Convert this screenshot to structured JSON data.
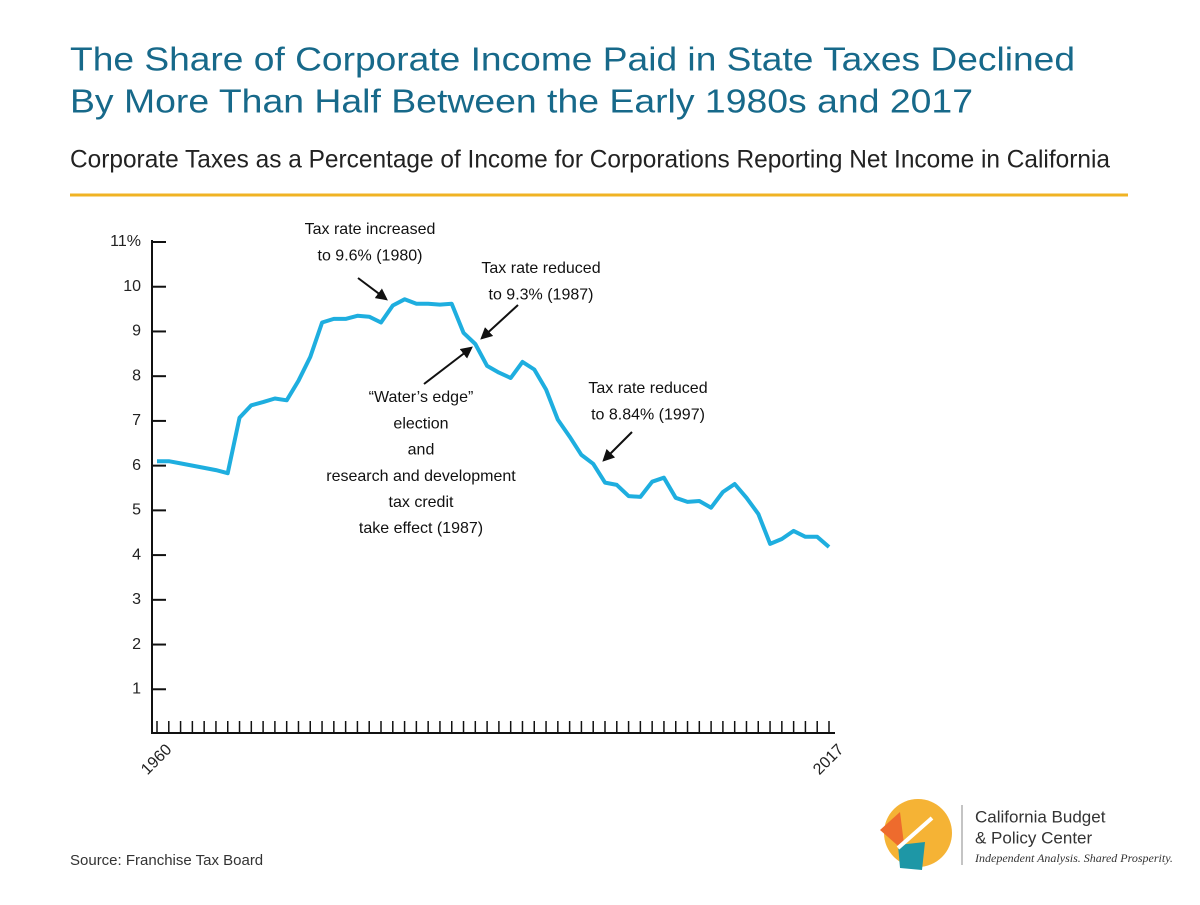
{
  "chart_data": {
    "type": "line",
    "title": [
      "The Share of Corporate Income Paid in State Taxes Declined",
      "By More Than Half Between the Early 1980s and 2017"
    ],
    "subtitle": "Corporate Taxes as a Percentage of Income for Corporations Reporting Net Income in California",
    "x": [
      1960,
      1961,
      1962,
      1963,
      1964,
      1965,
      1966,
      1967,
      1968,
      1969,
      1970,
      1971,
      1972,
      1973,
      1974,
      1975,
      1976,
      1977,
      1978,
      1979,
      1980,
      1981,
      1982,
      1983,
      1984,
      1985,
      1986,
      1987,
      1988,
      1989,
      1990,
      1991,
      1992,
      1993,
      1994,
      1995,
      1996,
      1997,
      1998,
      1999,
      2000,
      2001,
      2002,
      2003,
      2004,
      2005,
      2006,
      2007,
      2008,
      2009,
      2010,
      2011,
      2012,
      2013,
      2014,
      2015,
      2016,
      2017
    ],
    "series": [
      {
        "color": "#1eaedf",
        "values": [
          6.1,
          6.1,
          6.05,
          6.0,
          5.95,
          5.9,
          5.83,
          7.07,
          7.35,
          7.42,
          7.5,
          7.46,
          7.9,
          8.43,
          9.2,
          9.28,
          9.28,
          9.35,
          9.33,
          9.2,
          9.58,
          9.72,
          9.62,
          9.62,
          9.6,
          9.62,
          8.97,
          8.72,
          8.23,
          8.08,
          7.96,
          8.32,
          8.15,
          7.7,
          7.03,
          6.65,
          6.24,
          6.04,
          5.62,
          5.57,
          5.32,
          5.3,
          5.64,
          5.73,
          5.28,
          5.19,
          5.21,
          5.06,
          5.41,
          5.59,
          5.28,
          4.92,
          4.25,
          4.36,
          4.54,
          4.41,
          4.41,
          4.18
        ]
      }
    ],
    "xlim": [
      1960,
      2017
    ],
    "xticks": [
      1960,
      2017
    ],
    "ylim": [
      0,
      11
    ],
    "yticks": [
      1,
      2,
      3,
      4,
      5,
      6,
      7,
      8,
      9,
      10,
      {
        "value": 11,
        "label": "11%"
      }
    ],
    "annotations": [
      {
        "lines": [
          "Tax rate increased",
          "to 9.6% (1980)"
        ]
      },
      {
        "lines": [
          "Tax rate reduced",
          "to 9.3% (1987)"
        ]
      },
      {
        "lines": [
          "“Water’s edge”",
          "election",
          "and",
          "research and development",
          "tax credit",
          "take effect (1987)"
        ]
      },
      {
        "lines": [
          "Tax rate reduced",
          "to 8.84% (1997)"
        ]
      }
    ],
    "source": "Source: Franchise Tax Board",
    "logo": {
      "name": [
        "California Budget",
        "& Policy Center"
      ],
      "tagline": "Independent Analysis. Shared Prosperity."
    }
  }
}
